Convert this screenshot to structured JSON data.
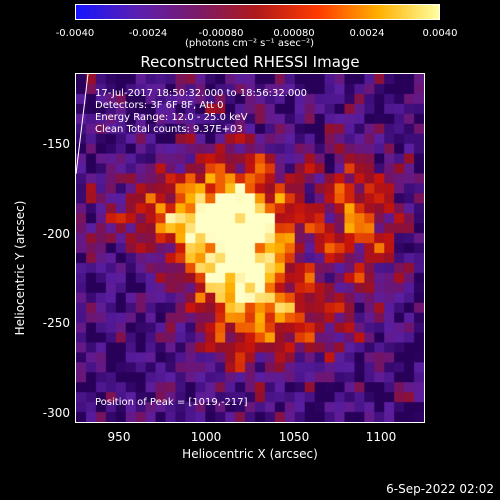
{
  "colorbar": {
    "ticks": [
      "-0.0040",
      "-0.0024",
      "-0.00080",
      "0.00080",
      "0.0024",
      "0.0040"
    ],
    "units": "(photons cm⁻² s⁻¹ asec⁻²)",
    "colors": [
      "#1515ff",
      "#5a1fb0",
      "#7a1a6a",
      "#b01a1a",
      "#ff3a00",
      "#ffb000",
      "#ffffa0"
    ]
  },
  "title": "Reconstructed RHESSI Image",
  "info": {
    "line1": "17-Jul-2017 18:50:32.000 to 18:56:32.000",
    "line2": "Detectors: 3F 6F 8F, Att 0",
    "line3": "Energy Range: 12.0 - 25.0 keV",
    "line4": "Clean    Total counts: 9.37E+03"
  },
  "peak": "Position of Peak = [1019,-217]",
  "axes": {
    "xlabel": "Heliocentric X (arcsec)",
    "ylabel": "Heliocentric Y (arcsec)",
    "xticks": [
      "950",
      "1000",
      "1050",
      "1100"
    ],
    "yticks": [
      "-150",
      "-200",
      "-250",
      "-300"
    ],
    "xrange": [
      928,
      1120
    ],
    "yrange": [
      -110,
      -305
    ]
  },
  "stamp": "6-Sep-2022 02:02"
}
